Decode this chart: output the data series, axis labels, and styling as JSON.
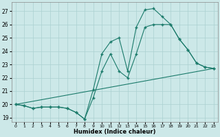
{
  "xlabel": "Humidex (Indice chaleur)",
  "bg_color": "#cce8e8",
  "line_color": "#1a7a6a",
  "grid_color": "#aad0d0",
  "xlim": [
    -0.5,
    23.5
  ],
  "ylim": [
    18.7,
    27.7
  ],
  "yticks": [
    19,
    20,
    21,
    22,
    23,
    24,
    25,
    26,
    27
  ],
  "xticks": [
    0,
    1,
    2,
    3,
    4,
    5,
    6,
    7,
    8,
    9,
    10,
    11,
    12,
    13,
    14,
    15,
    16,
    17,
    18,
    19,
    20,
    21,
    22,
    23
  ],
  "line1_x": [
    0,
    1,
    2,
    3,
    4,
    5,
    6,
    7,
    8,
    9,
    10,
    11,
    12,
    13,
    14,
    15,
    16,
    17,
    18,
    19,
    20,
    21,
    22,
    23
  ],
  "line1_y": [
    20.0,
    19.9,
    19.7,
    19.8,
    19.8,
    19.8,
    19.7,
    19.4,
    18.9,
    21.1,
    23.8,
    24.7,
    25.0,
    22.5,
    25.8,
    27.1,
    27.2,
    26.6,
    26.0,
    24.9,
    24.1,
    23.1,
    22.8,
    22.7
  ],
  "line2_x": [
    0,
    1,
    2,
    3,
    4,
    5,
    6,
    7,
    8,
    9,
    10,
    11,
    12,
    13,
    14,
    15,
    16,
    17,
    18,
    19,
    20,
    21,
    22,
    23
  ],
  "line2_y": [
    20.0,
    19.9,
    19.7,
    19.8,
    19.8,
    19.8,
    19.7,
    19.4,
    18.9,
    20.5,
    22.5,
    23.8,
    22.5,
    22.0,
    23.8,
    25.8,
    26.0,
    26.0,
    26.0,
    24.9,
    24.1,
    23.1,
    22.8,
    22.7
  ],
  "line3_x": [
    0,
    23
  ],
  "line3_y": [
    20.0,
    22.7
  ]
}
